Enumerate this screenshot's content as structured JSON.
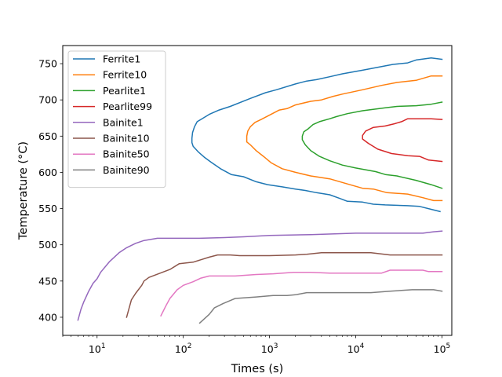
{
  "chart_data": {
    "type": "line",
    "title": "",
    "xlabel": "Times (s)",
    "ylabel": "Temperature (°C)",
    "xscale": "log",
    "xlim": [
      4,
      130000
    ],
    "ylim": [
      375,
      775
    ],
    "x_ticks": [
      10,
      100,
      1000,
      10000,
      100000
    ],
    "x_tick_labels": [
      {
        "base": "10",
        "exp": "1"
      },
      {
        "base": "10",
        "exp": "2"
      },
      {
        "base": "10",
        "exp": "3"
      },
      {
        "base": "10",
        "exp": "4"
      },
      {
        "base": "10",
        "exp": "5"
      }
    ],
    "y_ticks": [
      400,
      450,
      500,
      550,
      600,
      650,
      700,
      750
    ],
    "grid": false,
    "legend_position": "top-left",
    "series": [
      {
        "name": "Ferrite1",
        "color": "#1f77b4",
        "points": [
          [
            100000,
            756
          ],
          [
            75000,
            758
          ],
          [
            50000,
            755
          ],
          [
            40000,
            751
          ],
          [
            27000,
            749
          ],
          [
            12000,
            741
          ],
          [
            7000,
            736
          ],
          [
            5000,
            732
          ],
          [
            3500,
            728
          ],
          [
            2700,
            726
          ],
          [
            2000,
            722
          ],
          [
            1200,
            714
          ],
          [
            900,
            710
          ],
          [
            600,
            702
          ],
          [
            350,
            691
          ],
          [
            260,
            686
          ],
          [
            200,
            680
          ],
          [
            160,
            673
          ],
          [
            145,
            670
          ],
          [
            135,
            663
          ],
          [
            128,
            655
          ],
          [
            126,
            647
          ],
          [
            126,
            641
          ],
          [
            130,
            636
          ],
          [
            150,
            628
          ],
          [
            175,
            621
          ],
          [
            210,
            614
          ],
          [
            270,
            605
          ],
          [
            360,
            597
          ],
          [
            500,
            594
          ],
          [
            700,
            587
          ],
          [
            950,
            583
          ],
          [
            1400,
            580
          ],
          [
            2000,
            577
          ],
          [
            2600,
            575
          ],
          [
            3500,
            572
          ],
          [
            5000,
            569
          ],
          [
            6500,
            564
          ],
          [
            8000,
            560
          ],
          [
            12000,
            559
          ],
          [
            16000,
            556
          ],
          [
            22000,
            555
          ],
          [
            40000,
            554
          ],
          [
            55000,
            553
          ],
          [
            75000,
            549
          ],
          [
            95000,
            546
          ]
        ]
      },
      {
        "name": "Ferrite10",
        "color": "#ff7f0e",
        "points": [
          [
            100000,
            733
          ],
          [
            75000,
            733
          ],
          [
            50000,
            727
          ],
          [
            30000,
            724
          ],
          [
            20000,
            720
          ],
          [
            12000,
            714
          ],
          [
            7000,
            708
          ],
          [
            5500,
            705
          ],
          [
            4000,
            700
          ],
          [
            3000,
            698
          ],
          [
            2000,
            693
          ],
          [
            1600,
            688
          ],
          [
            1300,
            686
          ],
          [
            1000,
            679
          ],
          [
            800,
            673
          ],
          [
            680,
            669
          ],
          [
            600,
            663
          ],
          [
            560,
            657
          ],
          [
            545,
            650
          ],
          [
            545,
            642
          ],
          [
            600,
            638
          ],
          [
            700,
            630
          ],
          [
            850,
            622
          ],
          [
            1050,
            613
          ],
          [
            1400,
            605
          ],
          [
            2000,
            600
          ],
          [
            3000,
            595
          ],
          [
            5000,
            591
          ],
          [
            8000,
            584
          ],
          [
            12000,
            578
          ],
          [
            16000,
            577
          ],
          [
            23000,
            572
          ],
          [
            40000,
            570
          ],
          [
            60000,
            565
          ],
          [
            80000,
            561
          ],
          [
            100000,
            561
          ]
        ]
      },
      {
        "name": "Pearlite1",
        "color": "#2ca02c",
        "points": [
          [
            100000,
            697
          ],
          [
            75000,
            694
          ],
          [
            50000,
            692
          ],
          [
            30000,
            691
          ],
          [
            22000,
            689
          ],
          [
            12000,
            685
          ],
          [
            8000,
            681
          ],
          [
            6000,
            677
          ],
          [
            5000,
            674
          ],
          [
            3800,
            670
          ],
          [
            3200,
            666
          ],
          [
            2800,
            660
          ],
          [
            2500,
            656
          ],
          [
            2400,
            650
          ],
          [
            2400,
            645
          ],
          [
            2600,
            638
          ],
          [
            3000,
            630
          ],
          [
            3800,
            622
          ],
          [
            5000,
            616
          ],
          [
            7000,
            610
          ],
          [
            10000,
            606
          ],
          [
            17000,
            601
          ],
          [
            22000,
            597
          ],
          [
            30000,
            595
          ],
          [
            50000,
            589
          ],
          [
            75000,
            583
          ],
          [
            100000,
            578
          ]
        ]
      },
      {
        "name": "Pearlite99",
        "color": "#d62728",
        "points": [
          [
            100000,
            673
          ],
          [
            75000,
            674
          ],
          [
            55000,
            674
          ],
          [
            40000,
            674
          ],
          [
            34000,
            670
          ],
          [
            28000,
            667
          ],
          [
            22000,
            664
          ],
          [
            16000,
            662
          ],
          [
            13000,
            657
          ],
          [
            12000,
            651
          ],
          [
            12000,
            646
          ],
          [
            14000,
            640
          ],
          [
            18000,
            632
          ],
          [
            26000,
            626
          ],
          [
            40000,
            623
          ],
          [
            55000,
            622
          ],
          [
            70000,
            617
          ],
          [
            100000,
            615
          ]
        ]
      },
      {
        "name": "Bainite1",
        "color": "#9467bd",
        "points": [
          [
            6,
            396
          ],
          [
            6.5,
            411
          ],
          [
            7,
            421
          ],
          [
            8,
            436
          ],
          [
            9,
            447
          ],
          [
            10,
            453
          ],
          [
            11,
            462
          ],
          [
            14,
            477
          ],
          [
            18,
            489
          ],
          [
            22,
            496
          ],
          [
            28,
            502
          ],
          [
            35,
            506
          ],
          [
            50,
            509
          ],
          [
            80,
            509
          ],
          [
            150,
            509
          ],
          [
            300,
            510
          ],
          [
            500,
            511
          ],
          [
            1000,
            513
          ],
          [
            3000,
            514
          ],
          [
            10000,
            516
          ],
          [
            40000,
            516
          ],
          [
            60000,
            516
          ],
          [
            80000,
            518
          ],
          [
            100000,
            519
          ]
        ]
      },
      {
        "name": "Bainite10",
        "color": "#8c564b",
        "points": [
          [
            22,
            400
          ],
          [
            25,
            424
          ],
          [
            28,
            433
          ],
          [
            33,
            444
          ],
          [
            35,
            450
          ],
          [
            40,
            455
          ],
          [
            70,
            466
          ],
          [
            90,
            474
          ],
          [
            130,
            476
          ],
          [
            200,
            483
          ],
          [
            250,
            486
          ],
          [
            350,
            486
          ],
          [
            450,
            485
          ],
          [
            1000,
            485
          ],
          [
            2000,
            486
          ],
          [
            2700,
            487
          ],
          [
            4000,
            489
          ],
          [
            8000,
            489
          ],
          [
            15000,
            489
          ],
          [
            25000,
            486
          ],
          [
            50000,
            486
          ],
          [
            100000,
            486
          ]
        ]
      },
      {
        "name": "Bainite50",
        "color": "#e377c2",
        "points": [
          [
            55,
            402
          ],
          [
            63,
            416
          ],
          [
            70,
            426
          ],
          [
            85,
            438
          ],
          [
            100,
            444
          ],
          [
            130,
            449
          ],
          [
            160,
            454
          ],
          [
            200,
            457
          ],
          [
            400,
            457
          ],
          [
            700,
            459
          ],
          [
            1100,
            460
          ],
          [
            1900,
            462
          ],
          [
            3000,
            462
          ],
          [
            5000,
            461
          ],
          [
            10000,
            461
          ],
          [
            20000,
            461
          ],
          [
            25000,
            465
          ],
          [
            40000,
            465
          ],
          [
            60000,
            465
          ],
          [
            70000,
            463
          ],
          [
            100000,
            463
          ]
        ]
      },
      {
        "name": "Bainite90",
        "color": "#7f7f7f",
        "points": [
          [
            155,
            392
          ],
          [
            200,
            404
          ],
          [
            230,
            413
          ],
          [
            290,
            419
          ],
          [
            400,
            426
          ],
          [
            700,
            428
          ],
          [
            1100,
            430
          ],
          [
            1600,
            430
          ],
          [
            2000,
            431
          ],
          [
            2700,
            434
          ],
          [
            5000,
            434
          ],
          [
            15000,
            434
          ],
          [
            25000,
            436
          ],
          [
            45000,
            438
          ],
          [
            60000,
            438
          ],
          [
            80000,
            438
          ],
          [
            100000,
            436
          ]
        ]
      }
    ]
  }
}
